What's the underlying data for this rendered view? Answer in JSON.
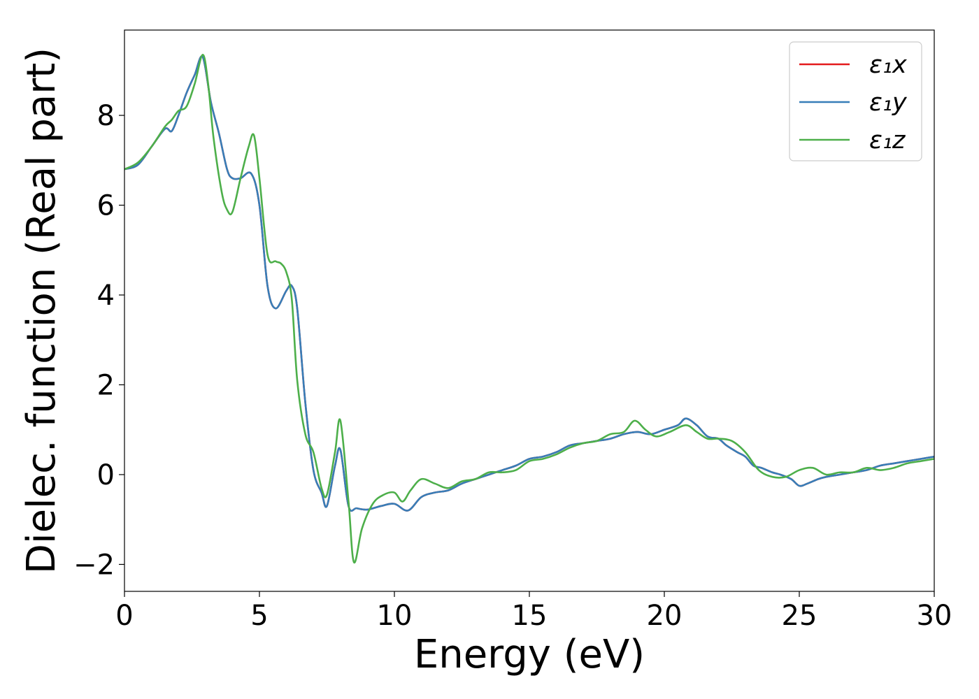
{
  "chart_data": {
    "type": "line",
    "xlabel": "Energy (eV)",
    "ylabel": "Dielec. function (Real part)",
    "xlim": [
      0,
      30
    ],
    "ylim": [
      -2.6,
      9.9
    ],
    "xticks": [
      0,
      5,
      10,
      15,
      20,
      25,
      30
    ],
    "yticks": [
      -2,
      0,
      2,
      4,
      6,
      8
    ],
    "xtick_labels": [
      "0",
      "5",
      "10",
      "15",
      "20",
      "25",
      "30"
    ],
    "ytick_labels": [
      "−2",
      "0",
      "2",
      "4",
      "6",
      "8"
    ],
    "grid": false,
    "legend_position": "top-right",
    "series": [
      {
        "name": "ε₁x",
        "color": "#e41a1c",
        "x": [
          0,
          0.5,
          1,
          1.5,
          1.75,
          2,
          2.3,
          2.6,
          2.9,
          3.2,
          3.5,
          3.8,
          4.0,
          4.3,
          4.7,
          5.0,
          5.3,
          5.6,
          6.0,
          6.2,
          6.4,
          6.7,
          7.0,
          7.3,
          7.5,
          7.8,
          8.0,
          8.3,
          8.6,
          9.0,
          9.5,
          10,
          10.5,
          11,
          11.5,
          12,
          12.5,
          13,
          13.5,
          14,
          14.5,
          15,
          15.5,
          16,
          16.5,
          17,
          17.5,
          18,
          18.5,
          19,
          19.5,
          20,
          20.5,
          20.8,
          21.2,
          21.6,
          22,
          22.3,
          22.7,
          23,
          23.3,
          23.6,
          24,
          24.3,
          24.7,
          25,
          25.3,
          25.7,
          26,
          26.5,
          27,
          27.5,
          28,
          28.5,
          29,
          29.5,
          30
        ],
        "values": [
          6.8,
          6.9,
          7.3,
          7.7,
          7.65,
          8.0,
          8.5,
          8.9,
          9.3,
          8.3,
          7.6,
          6.8,
          6.6,
          6.6,
          6.7,
          6.0,
          4.2,
          3.7,
          4.1,
          4.2,
          3.7,
          1.6,
          0.1,
          -0.4,
          -0.7,
          0.2,
          0.55,
          -0.7,
          -0.75,
          -0.78,
          -0.7,
          -0.65,
          -0.8,
          -0.5,
          -0.4,
          -0.35,
          -0.2,
          -0.1,
          0.0,
          0.1,
          0.2,
          0.35,
          0.4,
          0.5,
          0.65,
          0.7,
          0.75,
          0.8,
          0.9,
          0.95,
          0.9,
          1.0,
          1.1,
          1.25,
          1.1,
          0.85,
          0.8,
          0.65,
          0.5,
          0.4,
          0.2,
          0.15,
          0.05,
          0.0,
          -0.1,
          -0.25,
          -0.2,
          -0.1,
          -0.05,
          0.0,
          0.05,
          0.1,
          0.2,
          0.25,
          0.3,
          0.35,
          0.4
        ]
      },
      {
        "name": "ε₁y",
        "color": "#377eb8",
        "x": [
          0,
          0.5,
          1,
          1.5,
          1.75,
          2,
          2.3,
          2.6,
          2.9,
          3.2,
          3.5,
          3.8,
          4.0,
          4.3,
          4.7,
          5.0,
          5.3,
          5.6,
          6.0,
          6.2,
          6.4,
          6.7,
          7.0,
          7.3,
          7.5,
          7.8,
          8.0,
          8.3,
          8.6,
          9.0,
          9.5,
          10,
          10.5,
          11,
          11.5,
          12,
          12.5,
          13,
          13.5,
          14,
          14.5,
          15,
          15.5,
          16,
          16.5,
          17,
          17.5,
          18,
          18.5,
          19,
          19.5,
          20,
          20.5,
          20.8,
          21.2,
          21.6,
          22,
          22.3,
          22.7,
          23,
          23.3,
          23.6,
          24,
          24.3,
          24.7,
          25,
          25.3,
          25.7,
          26,
          26.5,
          27,
          27.5,
          28,
          28.5,
          29,
          29.5,
          30
        ],
        "values": [
          6.8,
          6.9,
          7.3,
          7.7,
          7.65,
          8.0,
          8.5,
          8.9,
          9.3,
          8.3,
          7.6,
          6.8,
          6.6,
          6.6,
          6.7,
          6.0,
          4.2,
          3.7,
          4.1,
          4.2,
          3.7,
          1.6,
          0.1,
          -0.4,
          -0.7,
          0.2,
          0.55,
          -0.7,
          -0.75,
          -0.78,
          -0.7,
          -0.65,
          -0.8,
          -0.5,
          -0.4,
          -0.35,
          -0.2,
          -0.1,
          0.0,
          0.1,
          0.2,
          0.35,
          0.4,
          0.5,
          0.65,
          0.7,
          0.75,
          0.8,
          0.9,
          0.95,
          0.9,
          1.0,
          1.1,
          1.25,
          1.1,
          0.85,
          0.8,
          0.65,
          0.5,
          0.4,
          0.2,
          0.15,
          0.05,
          0.0,
          -0.1,
          -0.25,
          -0.2,
          -0.1,
          -0.05,
          0.0,
          0.05,
          0.1,
          0.2,
          0.25,
          0.3,
          0.35,
          0.4
        ]
      },
      {
        "name": "ε₁z",
        "color": "#4daf4a",
        "x": [
          0,
          0.5,
          1,
          1.5,
          1.75,
          2,
          2.3,
          2.6,
          2.9,
          3.1,
          3.3,
          3.6,
          3.8,
          4.0,
          4.3,
          4.6,
          4.8,
          5.0,
          5.3,
          5.6,
          5.8,
          6.0,
          6.2,
          6.4,
          6.7,
          7.0,
          7.3,
          7.5,
          7.8,
          8.0,
          8.3,
          8.5,
          8.8,
          9.2,
          9.6,
          10,
          10.3,
          10.6,
          11,
          11.5,
          12,
          12.5,
          13,
          13.5,
          14,
          14.5,
          15,
          15.5,
          16,
          16.5,
          17,
          17.5,
          18,
          18.5,
          18.9,
          19.3,
          19.7,
          20.2,
          20.8,
          21.2,
          21.6,
          22,
          22.5,
          23,
          23.5,
          24,
          24.5,
          25,
          25.5,
          26,
          26.5,
          27,
          27.5,
          28,
          28.5,
          29,
          29.5,
          30
        ],
        "values": [
          6.8,
          6.95,
          7.3,
          7.75,
          7.9,
          8.1,
          8.2,
          8.7,
          9.35,
          8.7,
          7.5,
          6.3,
          5.9,
          5.85,
          6.6,
          7.3,
          7.55,
          6.6,
          4.9,
          4.75,
          4.7,
          4.5,
          3.9,
          2.1,
          0.9,
          0.5,
          -0.3,
          -0.45,
          0.5,
          1.2,
          -0.6,
          -1.95,
          -1.2,
          -0.65,
          -0.45,
          -0.4,
          -0.6,
          -0.35,
          -0.1,
          -0.2,
          -0.3,
          -0.15,
          -0.1,
          0.05,
          0.05,
          0.1,
          0.3,
          0.35,
          0.45,
          0.6,
          0.7,
          0.75,
          0.9,
          0.95,
          1.2,
          1.0,
          0.85,
          0.95,
          1.1,
          0.95,
          0.8,
          0.8,
          0.75,
          0.5,
          0.1,
          -0.05,
          -0.05,
          0.1,
          0.15,
          0.0,
          0.05,
          0.05,
          0.15,
          0.1,
          0.15,
          0.25,
          0.3,
          0.35
        ]
      }
    ]
  }
}
